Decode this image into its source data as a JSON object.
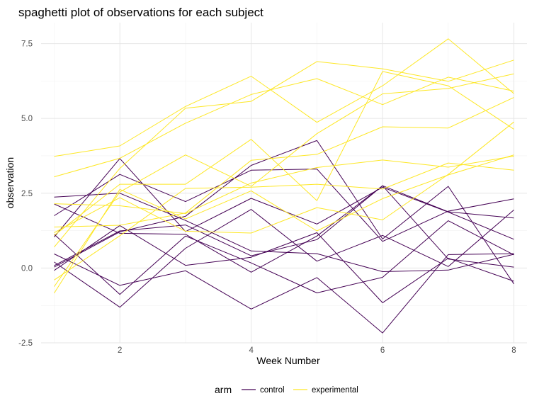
{
  "chart_data": {
    "type": "line",
    "title": "spaghetti plot of observations for each subject",
    "xlabel": "Week Number",
    "ylabel": "observation",
    "xlim": [
      0.8,
      8.2
    ],
    "ylim": [
      -2.5,
      8.2
    ],
    "x_ticks": [
      2,
      4,
      6,
      8
    ],
    "y_ticks": [
      -2.5,
      0.0,
      2.5,
      5.0,
      7.5
    ],
    "x_tick_labels": [
      "2",
      "4",
      "6",
      "8"
    ],
    "y_tick_labels": [
      "-2.5",
      "0.0",
      "2.5",
      "5.0",
      "7.5"
    ],
    "grid": true,
    "legend": {
      "title": "arm",
      "position": "bottom",
      "entries": [
        {
          "label": "control",
          "color": "#440154"
        },
        {
          "label": "experimental",
          "color": "#fde725"
        }
      ]
    },
    "x": [
      1,
      2,
      3,
      4,
      5,
      6,
      7,
      8
    ],
    "series": [
      {
        "group": "control",
        "values": [
          0.2,
          -1.31,
          0.66,
          1.96,
          0.23,
          1.09,
          0.05,
          1.94
        ]
      },
      {
        "group": "control",
        "values": [
          1.13,
          -0.88,
          1.07,
          0.17,
          -0.83,
          -0.31,
          1.58,
          0.44
        ]
      },
      {
        "group": "control",
        "values": [
          2.14,
          1.16,
          1.13,
          -0.14,
          1.07,
          2.75,
          1.88,
          1.67
        ]
      },
      {
        "group": "control",
        "values": [
          1.04,
          3.66,
          1.22,
          2.33,
          1.47,
          2.7,
          1.87,
          0.96
        ]
      },
      {
        "group": "control",
        "values": [
          0.47,
          -0.58,
          -0.09,
          -1.37,
          -0.32,
          -2.17,
          0.45,
          0.48
        ]
      },
      {
        "group": "control",
        "values": [
          2.37,
          2.5,
          1.59,
          0.57,
          0.48,
          -0.12,
          -0.07,
          0.46
        ]
      },
      {
        "group": "control",
        "values": [
          0.03,
          1.21,
          1.73,
          3.43,
          4.26,
          0.97,
          2.73,
          -0.53
        ]
      },
      {
        "group": "control",
        "values": [
          -0.08,
          1.42,
          0.09,
          0.36,
          1.18,
          -1.16,
          0.33,
          -0.44
        ]
      },
      {
        "group": "control",
        "values": [
          0.08,
          1.24,
          1.44,
          0.41,
          0.95,
          2.75,
          0.3,
          0.03
        ]
      },
      {
        "group": "control",
        "values": [
          1.75,
          3.13,
          2.22,
          3.27,
          3.31,
          0.89,
          1.9,
          2.31
        ]
      },
      {
        "group": "experimental",
        "values": [
          3.05,
          3.67,
          4.84,
          5.8,
          6.33,
          5.46,
          6.38,
          5.91
        ]
      },
      {
        "group": "experimental",
        "values": [
          -0.84,
          2.63,
          1.64,
          2.58,
          1.24,
          2.32,
          3.11,
          3.78
        ]
      },
      {
        "group": "experimental",
        "values": [
          2.15,
          2.08,
          1.82,
          2.84,
          3.36,
          3.61,
          3.37,
          3.74
        ]
      },
      {
        "group": "experimental",
        "values": [
          -0.62,
          2.54,
          3.78,
          2.73,
          4.49,
          5.82,
          6.0,
          6.49
        ]
      },
      {
        "group": "experimental",
        "values": [
          0.7,
          3.33,
          5.34,
          5.57,
          6.9,
          6.66,
          6.24,
          6.95
        ]
      },
      {
        "group": "experimental",
        "values": [
          3.73,
          4.08,
          5.4,
          6.41,
          4.87,
          6.09,
          7.66,
          5.83
        ]
      },
      {
        "group": "experimental",
        "values": [
          1.18,
          2.35,
          1.23,
          1.17,
          2.02,
          1.61,
          3.13,
          4.88
        ]
      },
      {
        "group": "experimental",
        "values": [
          1.37,
          1.43,
          1.84,
          3.6,
          3.8,
          4.72,
          4.68,
          5.7
        ]
      },
      {
        "group": "experimental",
        "values": [
          -0.4,
          1.08,
          2.66,
          2.7,
          2.8,
          2.64,
          3.51,
          3.27
        ]
      },
      {
        "group": "experimental",
        "values": [
          1.09,
          2.8,
          2.8,
          4.3,
          2.25,
          6.57,
          6.09,
          4.64
        ]
      }
    ]
  }
}
